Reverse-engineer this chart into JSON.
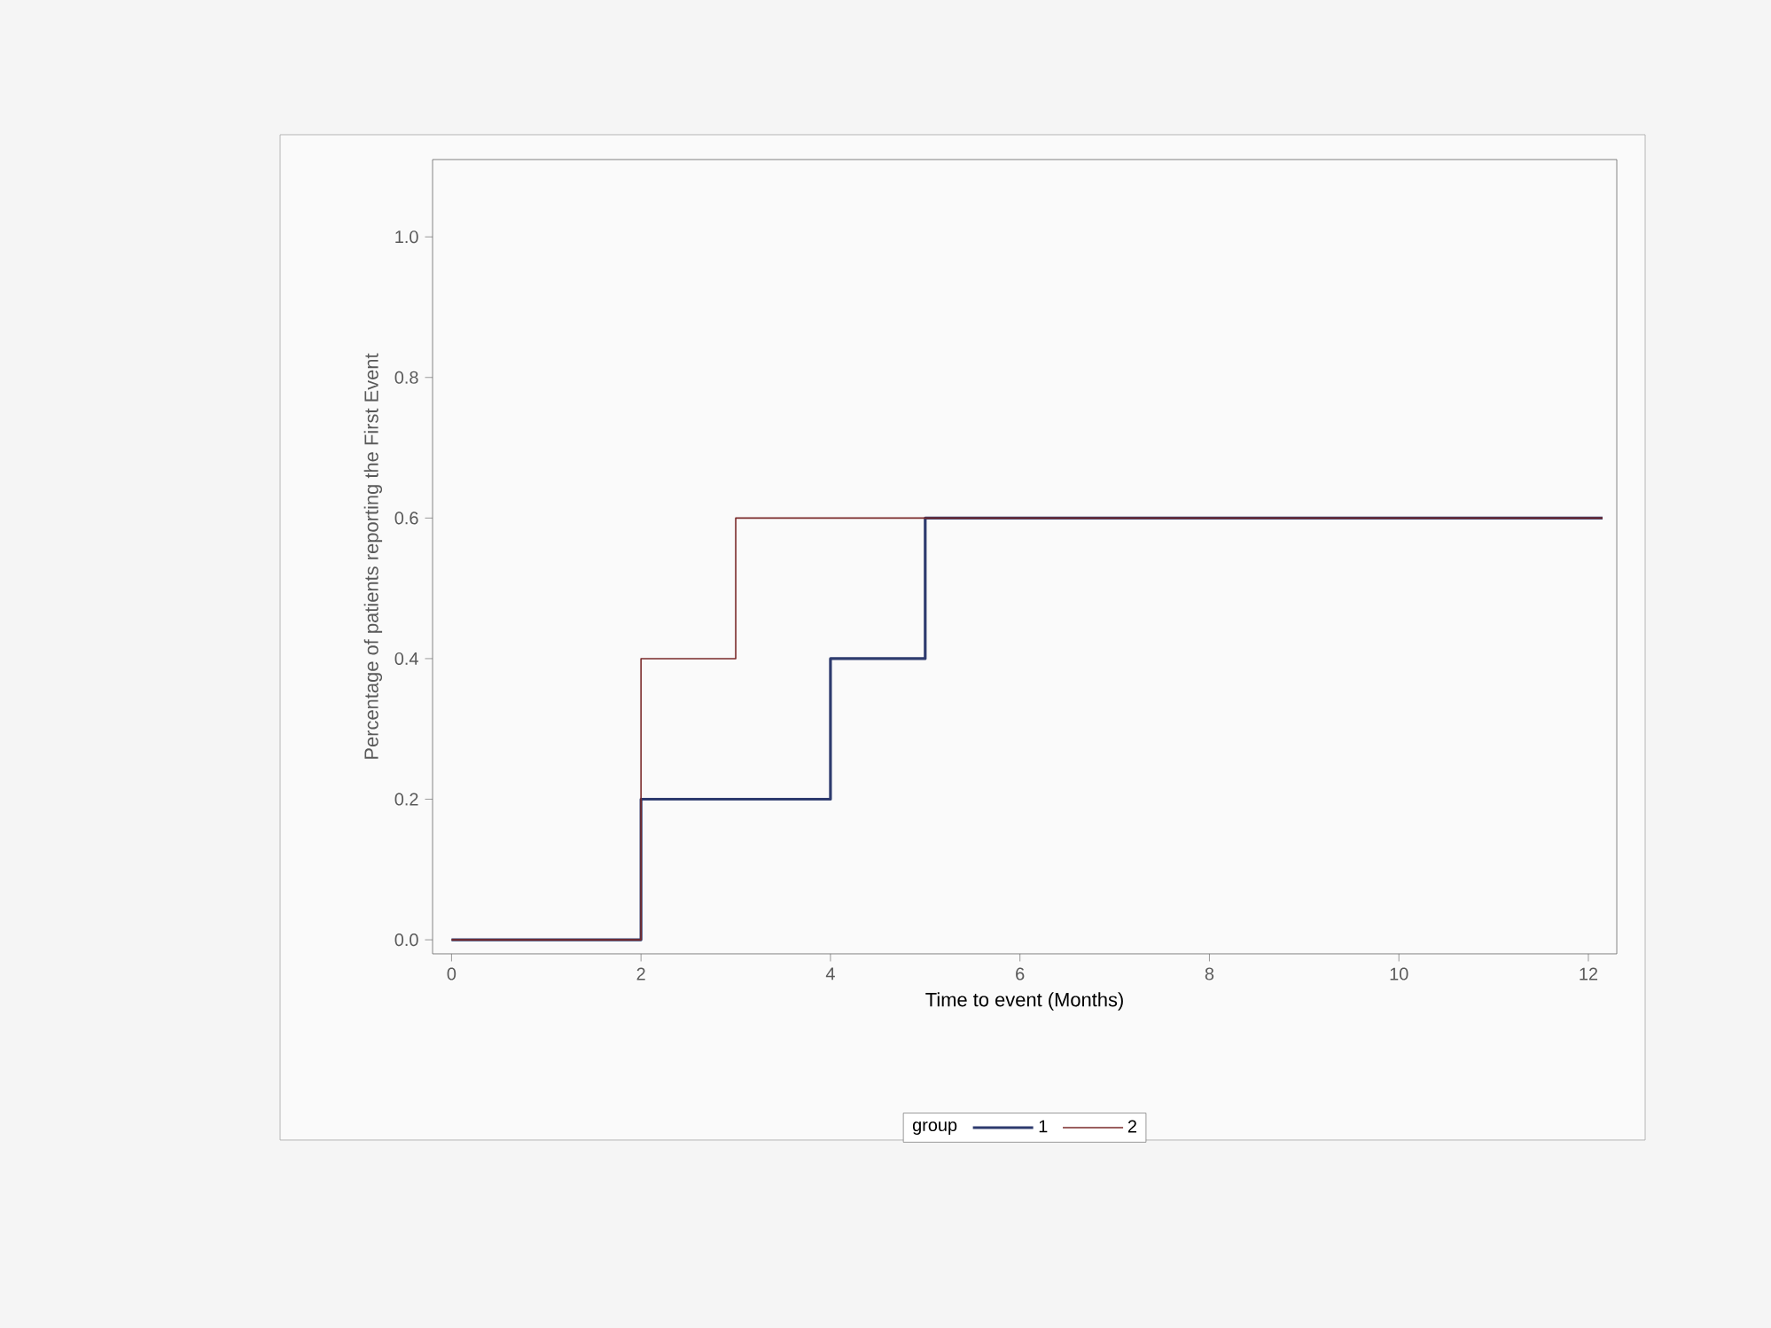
{
  "chart_data": {
    "type": "step",
    "xlabel": "Time to event (Months)",
    "ylabel": "Percentage of patients reporting the First Event",
    "legend_title": "group",
    "legend": "bottom",
    "xlim": [
      -0.2,
      12.3
    ],
    "xticks": [
      0,
      2,
      4,
      6,
      8,
      10,
      12
    ],
    "ylim": [
      -0.02,
      1.11
    ],
    "yticks": [
      {
        "value": 0,
        "label": "0.0"
      },
      0.2,
      0.4,
      0.6,
      0.8,
      {
        "value": 1,
        "label": "1.0"
      }
    ],
    "grid": false,
    "marker": "none",
    "line_style": "solid",
    "series": [
      {
        "name": "1",
        "color": "#2e3b6e",
        "x": [
          0,
          2,
          4,
          5,
          12.15
        ],
        "values": [
          0,
          0.2,
          0.4,
          0.6,
          0.6
        ]
      },
      {
        "name": "2",
        "color": "#7a2a2a",
        "x": [
          0,
          2,
          3,
          12.15
        ],
        "values": [
          0,
          0.4,
          0.6,
          0.6
        ]
      }
    ]
  }
}
